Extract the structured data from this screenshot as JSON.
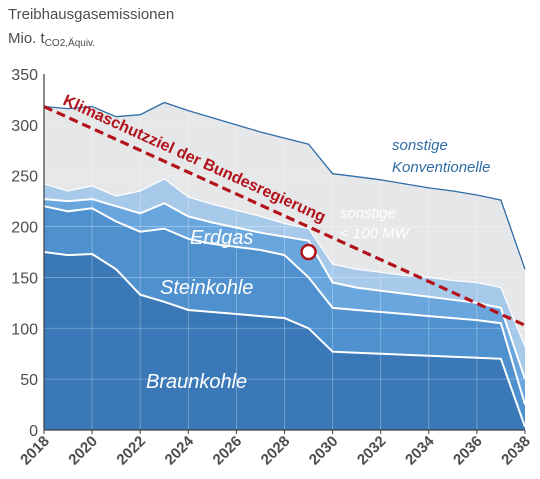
{
  "chart_data": {
    "type": "area",
    "title": "Treibhausgasemissionen",
    "ylabel_prefix": "Mio. t",
    "ylabel_sub": "CO2,Äquiv.",
    "ylim": [
      0,
      350
    ],
    "xlim": [
      2018,
      2038
    ],
    "y_ticks": [
      0,
      50,
      100,
      150,
      200,
      250,
      300,
      350
    ],
    "x_ticks": [
      2018,
      2020,
      2022,
      2024,
      2026,
      2028,
      2030,
      2032,
      2034,
      2036,
      2038
    ],
    "grid": true,
    "x": [
      2018,
      2019,
      2020,
      2021,
      2022,
      2023,
      2024,
      2025,
      2026,
      2027,
      2028,
      2029,
      2030,
      2031,
      2032,
      2033,
      2034,
      2035,
      2036,
      2037,
      2038
    ],
    "series": [
      {
        "name": "Braunkohle",
        "color": "#3a78b8",
        "values": [
          175,
          172,
          173,
          158,
          133,
          126,
          118,
          116,
          114,
          112,
          110,
          100,
          77,
          76,
          75,
          74,
          73,
          72,
          71,
          70,
          3
        ]
      },
      {
        "name": "Steinkohle",
        "color": "#4f90cf",
        "values": [
          220,
          215,
          218,
          205,
          195,
          198,
          188,
          183,
          180,
          177,
          172,
          150,
          120,
          118,
          116,
          114,
          112,
          110,
          108,
          105,
          25
        ]
      },
      {
        "name": "Erdgas",
        "color": "#6aa6de",
        "values": [
          227,
          225,
          227,
          220,
          213,
          223,
          210,
          204,
          199,
          194,
          190,
          186,
          145,
          140,
          137,
          134,
          131,
          128,
          125,
          120,
          50
        ]
      },
      {
        "name": "sonstige < 100 MW",
        "color": "#a7c9ea",
        "values": [
          242,
          235,
          240,
          230,
          235,
          247,
          229,
          222,
          216,
          210,
          203,
          198,
          163,
          158,
          155,
          152,
          150,
          147,
          145,
          140,
          82
        ]
      },
      {
        "name": "sonstige Konventionelle",
        "color": "#e6e7e9",
        "values": [
          318,
          316,
          318,
          308,
          310,
          322,
          314,
          307,
          300,
          293,
          287,
          281,
          252,
          249,
          246,
          242,
          238,
          235,
          231,
          226,
          158
        ]
      }
    ],
    "target_line": {
      "name": "Klimaschutzziel der Bundesregierung",
      "color": "#b3121a",
      "x": [
        2018,
        2038
      ],
      "values": [
        318,
        103
      ],
      "marker_x": 2029,
      "marker_value": 175
    },
    "labels": {
      "braunkohle": "Braunkohle",
      "steinkohle": "Steinkohle",
      "erdgas": "Erdgas",
      "sonstige_100_line1": "sonstige",
      "sonstige_100_line2": "< 100 MW",
      "sonstige_konv_line1": "sonstige",
      "sonstige_konv_line2": "Konventionelle",
      "target": "Klimaschutzziel der Bundesregierung"
    }
  }
}
